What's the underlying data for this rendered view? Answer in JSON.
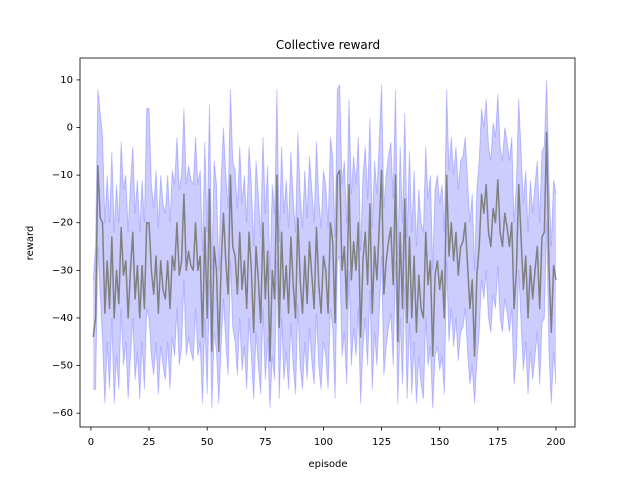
{
  "chart_data": {
    "type": "line",
    "title": "Collective reward",
    "xlabel": "episode",
    "ylabel": "reward",
    "x": [
      1,
      2,
      3,
      4,
      5,
      6,
      7,
      8,
      9,
      10,
      11,
      12,
      13,
      14,
      15,
      16,
      17,
      18,
      19,
      20,
      21,
      22,
      23,
      24,
      25,
      26,
      27,
      28,
      29,
      30,
      31,
      32,
      33,
      34,
      35,
      36,
      37,
      38,
      39,
      40,
      41,
      42,
      43,
      44,
      45,
      46,
      47,
      48,
      49,
      50,
      51,
      52,
      53,
      54,
      55,
      56,
      57,
      58,
      59,
      60,
      61,
      62,
      63,
      64,
      65,
      66,
      67,
      68,
      69,
      70,
      71,
      72,
      73,
      74,
      75,
      76,
      77,
      78,
      79,
      80,
      81,
      82,
      83,
      84,
      85,
      86,
      87,
      88,
      89,
      90,
      91,
      92,
      93,
      94,
      95,
      96,
      97,
      98,
      99,
      100,
      101,
      102,
      103,
      104,
      105,
      106,
      107,
      108,
      109,
      110,
      111,
      112,
      113,
      114,
      115,
      116,
      117,
      118,
      119,
      120,
      121,
      122,
      123,
      124,
      125,
      126,
      127,
      128,
      129,
      130,
      131,
      132,
      133,
      134,
      135,
      136,
      137,
      138,
      139,
      140,
      141,
      142,
      143,
      144,
      145,
      146,
      147,
      148,
      149,
      150,
      151,
      152,
      153,
      154,
      155,
      156,
      157,
      158,
      159,
      160,
      161,
      162,
      163,
      164,
      165,
      166,
      167,
      168,
      169,
      170,
      171,
      172,
      173,
      174,
      175,
      176,
      177,
      178,
      179,
      180,
      181,
      182,
      183,
      184,
      185,
      186,
      187,
      188,
      189,
      190,
      191,
      192,
      193,
      194,
      195,
      196,
      197,
      198,
      199,
      200
    ],
    "series": [
      {
        "color": "#808080",
        "values": [
          -44,
          -40,
          -8,
          -19,
          -20,
          -39,
          -28,
          -38,
          -23,
          -40,
          -30,
          -37,
          -21,
          -31,
          -28,
          -40,
          -30,
          -22,
          -36,
          -29,
          -40,
          -29,
          -38,
          -20,
          -20,
          -30,
          -35,
          -27,
          -39,
          -28,
          -34,
          -36,
          -28,
          -38,
          -27,
          -30,
          -20,
          -31,
          -28,
          -14,
          -30,
          -26,
          -29,
          -30,
          -20,
          -30,
          -27,
          -44,
          -21,
          -40,
          -13,
          -47,
          -25,
          -30,
          -47,
          -29,
          -18,
          -28,
          -35,
          -10,
          -25,
          -27,
          -35,
          -22,
          -34,
          -28,
          -38,
          -22,
          -30,
          -43,
          -25,
          -32,
          -41,
          -20,
          -36,
          -26,
          -49,
          -30,
          -36,
          -10,
          -42,
          -22,
          -36,
          -29,
          -39,
          -23,
          -33,
          -40,
          -19,
          -32,
          -39,
          -27,
          -37,
          -24,
          -31,
          -38,
          -21,
          -33,
          -39,
          -27,
          -30,
          -39,
          -20,
          -24,
          -41,
          -10,
          -9,
          -30,
          -25,
          -38,
          -12,
          -32,
          -24,
          -30,
          -20,
          -44,
          -28,
          -22,
          -33,
          -16,
          -39,
          -25,
          -32,
          -21,
          -9,
          -35,
          -28,
          -24,
          -21,
          -33,
          -10,
          -45,
          -22,
          -38,
          -15,
          -41,
          -23,
          -40,
          -27,
          -43,
          -31,
          -38,
          -40,
          -22,
          -33,
          -28,
          -48,
          -31,
          -28,
          -34,
          -30,
          -40,
          -10,
          -27,
          -20,
          -28,
          -22,
          -31,
          -25,
          -24,
          -20,
          -29,
          -38,
          -32,
          -48,
          -31,
          -25,
          -14,
          -18,
          -12,
          -22,
          -25,
          -17,
          -20,
          -11,
          -22,
          -25,
          -18,
          -21,
          -25,
          -20,
          -38,
          -30,
          -12,
          -23,
          -34,
          -27,
          -40,
          -29,
          -36,
          -30,
          -25,
          -38,
          -23,
          -22,
          -1,
          -29,
          -43,
          -29,
          -32
        ]
      }
    ],
    "band": {
      "color": "#0000ff",
      "alpha": 0.2,
      "lower": [
        -55,
        -55,
        -25,
        -35,
        -45,
        -58,
        -45,
        -55,
        -40,
        -58,
        -48,
        -55,
        -38,
        -50,
        -45,
        -57,
        -48,
        -40,
        -53,
        -47,
        -57,
        -45,
        -55,
        -38,
        -40,
        -48,
        -52,
        -45,
        -56,
        -46,
        -50,
        -53,
        -45,
        -55,
        -44,
        -48,
        -38,
        -50,
        -46,
        -32,
        -48,
        -44,
        -47,
        -49,
        -38,
        -48,
        -45,
        -58,
        -40,
        -56,
        -32,
        -59,
        -43,
        -47,
        -58,
        -46,
        -36,
        -45,
        -52,
        -28,
        -42,
        -45,
        -52,
        -40,
        -51,
        -46,
        -55,
        -40,
        -48,
        -57,
        -43,
        -50,
        -56,
        -38,
        -53,
        -44,
        -59,
        -48,
        -53,
        -28,
        -57,
        -40,
        -53,
        -47,
        -55,
        -41,
        -50,
        -56,
        -37,
        -50,
        -55,
        -45,
        -53,
        -42,
        -49,
        -54,
        -39,
        -50,
        -55,
        -45,
        -48,
        -55,
        -38,
        -42,
        -57,
        -28,
        -27,
        -48,
        -43,
        -54,
        -30,
        -50,
        -42,
        -48,
        -38,
        -58,
        -46,
        -40,
        -50,
        -34,
        -55,
        -43,
        -50,
        -39,
        -27,
        -52,
        -46,
        -42,
        -39,
        -50,
        -28,
        -58,
        -40,
        -54,
        -33,
        -57,
        -41,
        -56,
        -45,
        -58,
        -48,
        -54,
        -57,
        -40,
        -50,
        -46,
        -59,
        -48,
        -46,
        -51,
        -48,
        -56,
        -28,
        -45,
        -38,
        -46,
        -40,
        -49,
        -43,
        -42,
        -38,
        -47,
        -54,
        -50,
        -58,
        -49,
        -43,
        -32,
        -36,
        -30,
        -40,
        -43,
        -35,
        -38,
        -29,
        -40,
        -43,
        -36,
        -39,
        -43,
        -38,
        -54,
        -48,
        -30,
        -41,
        -51,
        -45,
        -56,
        -47,
        -53,
        -48,
        -43,
        -54,
        -41,
        -40,
        -20,
        -47,
        -58,
        -47,
        -54
      ],
      "upper": [
        -32,
        -25,
        8,
        3,
        -2,
        -20,
        -10,
        -20,
        -5,
        -22,
        -12,
        -20,
        -3,
        -13,
        -10,
        -22,
        -12,
        -4,
        -18,
        -11,
        -22,
        -11,
        -20,
        4,
        4,
        -12,
        -17,
        -9,
        -21,
        -10,
        -16,
        -18,
        -10,
        -20,
        -9,
        -12,
        -2,
        -13,
        -10,
        4,
        -12,
        -8,
        -11,
        -12,
        -2,
        -12,
        -9,
        -26,
        -3,
        -22,
        5,
        -30,
        -7,
        -12,
        -30,
        -11,
        0,
        -10,
        -17,
        8,
        -7,
        -9,
        -17,
        -4,
        -16,
        -10,
        -20,
        -4,
        -12,
        -25,
        -7,
        -14,
        -23,
        -2,
        -18,
        -8,
        -32,
        -12,
        -18,
        8,
        -24,
        -4,
        -18,
        -11,
        -21,
        -5,
        -15,
        -22,
        -1,
        -14,
        -21,
        -9,
        -19,
        -6,
        -13,
        -20,
        -3,
        -15,
        -21,
        -9,
        -12,
        -21,
        -2,
        -6,
        -23,
        8,
        9,
        -12,
        -7,
        -20,
        6,
        -14,
        -6,
        -12,
        -2,
        -26,
        -10,
        -4,
        -15,
        2,
        -21,
        -7,
        -14,
        -3,
        9,
        -17,
        -10,
        -6,
        -3,
        -15,
        8,
        -27,
        -4,
        -20,
        3,
        -23,
        -5,
        -22,
        -9,
        -25,
        -13,
        -20,
        -22,
        -4,
        -15,
        -10,
        -30,
        -13,
        -10,
        -16,
        -12,
        -22,
        8,
        -9,
        -2,
        -10,
        -4,
        -13,
        -7,
        -6,
        -2,
        -11,
        -20,
        -14,
        -30,
        -13,
        -7,
        4,
        0,
        6,
        -4,
        -7,
        1,
        -2,
        7,
        -4,
        -7,
        0,
        -3,
        -7,
        -2,
        -20,
        -12,
        6,
        -5,
        -16,
        -9,
        -22,
        -11,
        -18,
        -12,
        -7,
        -20,
        -5,
        -4,
        10,
        -11,
        -25,
        -11,
        -14
      ]
    },
    "xlim": [
      -4.7,
      208.2
    ],
    "ylim": [
      -62.9,
      14.6
    ],
    "xticks": [
      0,
      25,
      50,
      75,
      100,
      125,
      150,
      175,
      200
    ],
    "yticks": [
      {
        "value": -60,
        "label": "−60"
      },
      {
        "value": -50,
        "label": "−50"
      },
      {
        "value": -40,
        "label": "−40"
      },
      {
        "value": -30,
        "label": "−30"
      },
      {
        "value": -20,
        "label": "−20"
      },
      {
        "value": -10,
        "label": "−10"
      },
      0,
      10
    ]
  }
}
